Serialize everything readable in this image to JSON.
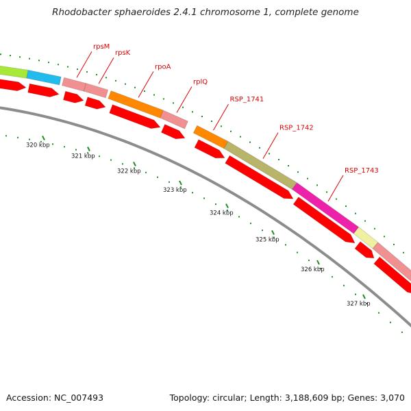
{
  "title": "Rhodobacter sphaeroides 2.4.1 chromosome 1, complete genome",
  "footer": {
    "accession": "Accession: NC_007493",
    "stats": "Topology: circular; Length: 3,188,609 bp; Genes: 3,070"
  },
  "colors": {
    "cds_strand": "#ff0000",
    "backbone": "#8c8c8c",
    "tick": "#1e8c1e",
    "label": "#dd0000"
  },
  "scale": {
    "unit": "kbp",
    "ticks": [
      {
        "label": "320 kbp",
        "value": 320
      },
      {
        "label": "321 kbp",
        "value": 321
      },
      {
        "label": "322 kbp",
        "value": 322
      },
      {
        "label": "323 kbp",
        "value": 323
      },
      {
        "label": "324 kbp",
        "value": 324
      },
      {
        "label": "325 kbp",
        "value": 325
      },
      {
        "label": "326 kbp",
        "value": 326
      },
      {
        "label": "327 kbp",
        "value": 327
      }
    ]
  },
  "genes": [
    {
      "color": "#a8e838"
    },
    {
      "color": "#22bbee"
    },
    {
      "name": "rpsM",
      "color": "#f09090"
    },
    {
      "name": "rpsK",
      "color": "#f09090"
    },
    {
      "name": "rpoA",
      "color": "#ff8800"
    },
    {
      "name": "rplQ",
      "color": "#f09090"
    },
    {
      "name": "RSP_1741",
      "color": "#ff8800"
    },
    {
      "name": "RSP_1742",
      "color": "#b8b46a"
    },
    {
      "name": "RSP_1743",
      "color": "#ee22aa"
    },
    {
      "color": "#f0f0a0"
    },
    {
      "color": "#f09090"
    }
  ]
}
